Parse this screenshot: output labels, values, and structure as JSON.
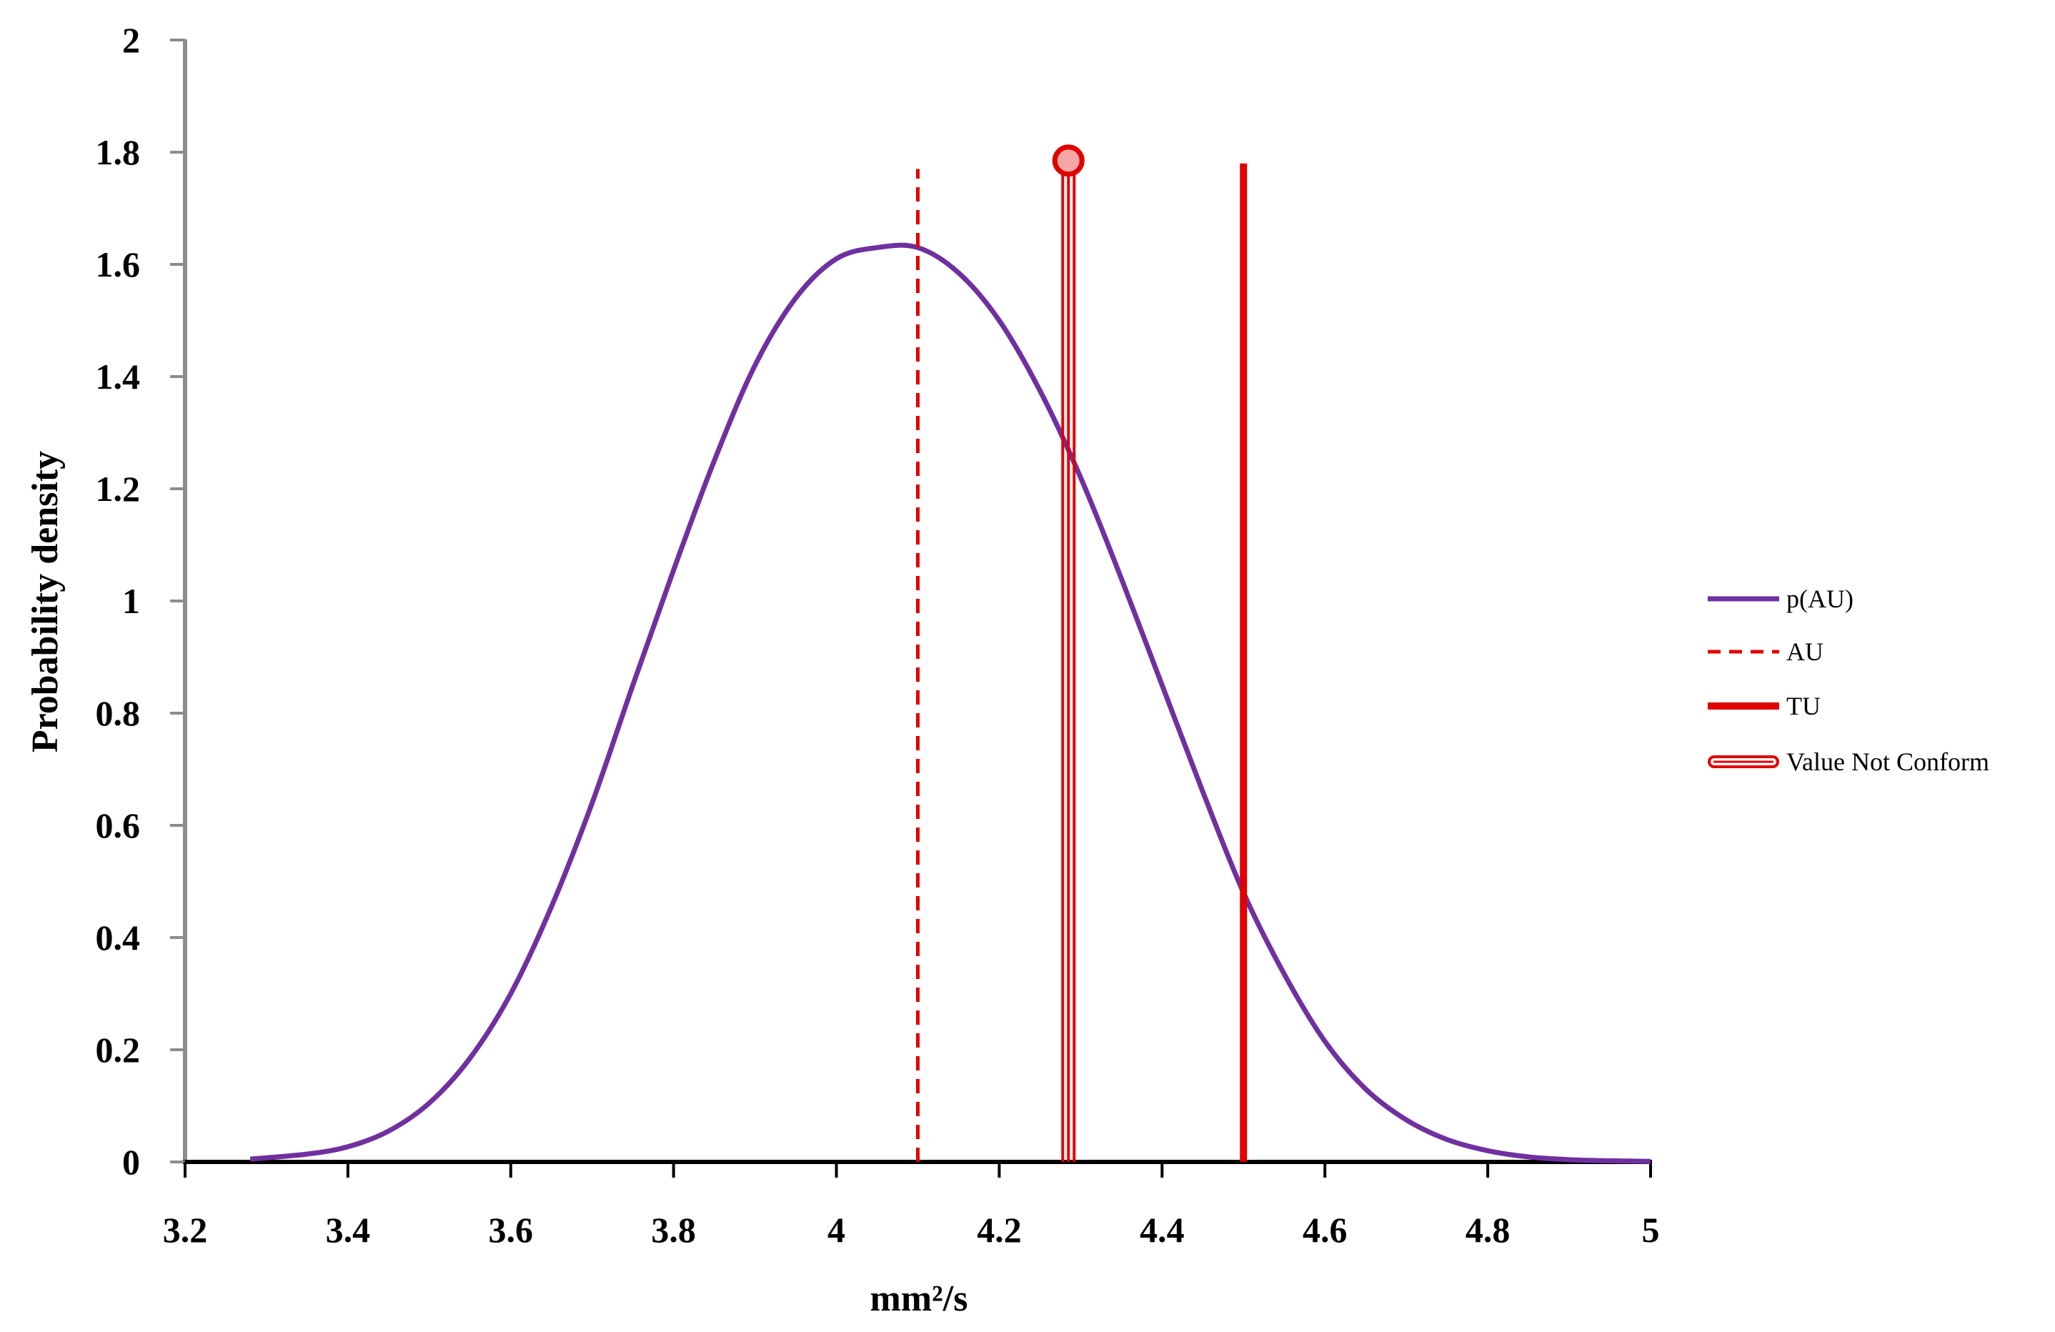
{
  "chart_data": {
    "type": "line",
    "title": "",
    "xlabel": "mm²/s",
    "ylabel": "Probability density",
    "xlim": [
      3.2,
      5
    ],
    "ylim": [
      0,
      2
    ],
    "x_ticks": [
      3.2,
      3.4,
      3.6,
      3.8,
      4,
      4.2,
      4.4,
      4.6,
      4.8,
      5
    ],
    "x_tick_labels": [
      "3.2",
      "3.4",
      "3.6",
      "3.8",
      "4",
      "4.2",
      "4.4",
      "4.6",
      "4.8",
      "5"
    ],
    "y_ticks": [
      0,
      0.2,
      0.4,
      0.6,
      0.8,
      1,
      1.2,
      1.4,
      1.6,
      1.8,
      2
    ],
    "y_tick_labels": [
      "0",
      "0.2",
      "0.4",
      "0.6",
      "0.8",
      "1",
      "1.2",
      "1.4",
      "1.6",
      "1.8",
      "2"
    ],
    "grid": false,
    "legend_position": "right",
    "series": [
      {
        "name": "p(AU)",
        "color": "#7030a0",
        "kind": "curve",
        "x": [
          3.28,
          3.35,
          3.4,
          3.45,
          3.5,
          3.55,
          3.6,
          3.65,
          3.7,
          3.75,
          3.8,
          3.85,
          3.9,
          3.95,
          4.0,
          4.05,
          4.1,
          4.15,
          4.2,
          4.25,
          4.3,
          4.35,
          4.4,
          4.45,
          4.5,
          4.55,
          4.6,
          4.65,
          4.7,
          4.75,
          4.8,
          4.85,
          4.9,
          4.95,
          5.0
        ],
        "y": [
          0.005,
          0.014,
          0.027,
          0.055,
          0.105,
          0.185,
          0.3,
          0.455,
          0.64,
          0.85,
          1.055,
          1.25,
          1.42,
          1.54,
          1.61,
          1.63,
          1.63,
          1.585,
          1.5,
          1.375,
          1.22,
          1.04,
          0.85,
          0.66,
          0.48,
          0.335,
          0.215,
          0.13,
          0.075,
          0.04,
          0.02,
          0.009,
          0.004,
          0.002,
          0.001
        ]
      },
      {
        "name": "AU",
        "color": "#e00000",
        "kind": "dashed-vline",
        "x": [
          4.1
        ],
        "y": [
          1.77
        ]
      },
      {
        "name": "TU",
        "color": "#e00000",
        "kind": "solid-vline",
        "x": [
          4.5
        ],
        "y": [
          1.78
        ]
      },
      {
        "name": "Value Not Conform",
        "color": "#e00000",
        "marker_fill": "#f4a6a6",
        "kind": "double-vline-marker",
        "x": [
          4.285
        ],
        "y": [
          1.785
        ]
      }
    ]
  }
}
